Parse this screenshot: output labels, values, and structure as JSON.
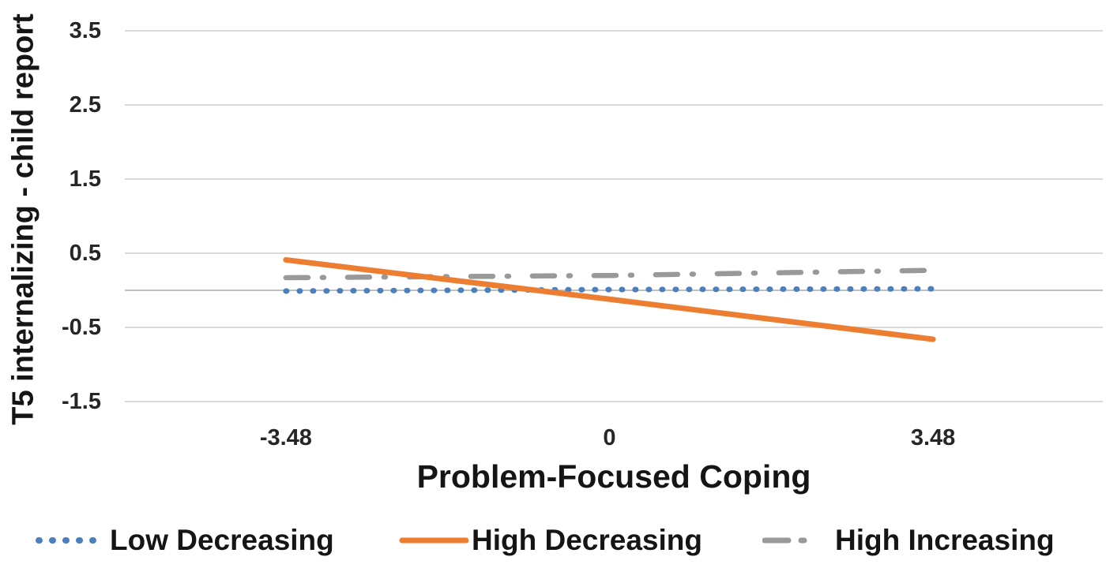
{
  "chart_data": {
    "type": "line",
    "title": "",
    "xlabel": "Problem-Focused Coping",
    "ylabel": "T5 internalizing - child report",
    "x": [
      -3.48,
      0,
      3.48
    ],
    "xtick_labels": [
      "-3.48",
      "0",
      "3.48"
    ],
    "yticks": [
      3.5,
      2.5,
      1.5,
      0.5,
      -0.5,
      -1.5
    ],
    "ytick_labels": [
      "3.5",
      "2.5",
      "1.5",
      "0.5",
      "-0.5",
      "-1.5"
    ],
    "ylim": [
      -1.9,
      3.9
    ],
    "grid": "horizontal gridlines at labeled y ticks",
    "axis_line_y": 0,
    "legend_position": "bottom",
    "series": [
      {
        "name": "Low Decreasing",
        "values": [
          -0.01,
          0.01,
          0.02
        ],
        "color": "#4b7fbd",
        "line_style": "dotted"
      },
      {
        "name": "High Decreasing",
        "values": [
          0.41,
          -0.12,
          -0.66
        ],
        "color": "#ED7D31",
        "line_style": "solid"
      },
      {
        "name": "High Increasing",
        "values": [
          0.17,
          0.2,
          0.27
        ],
        "color": "#999999",
        "line_style": "dash-dot"
      }
    ],
    "colors": {
      "gridline": "#D9D9D9",
      "axis_line": "#BFBFBF",
      "tick_text": "#262626"
    }
  }
}
